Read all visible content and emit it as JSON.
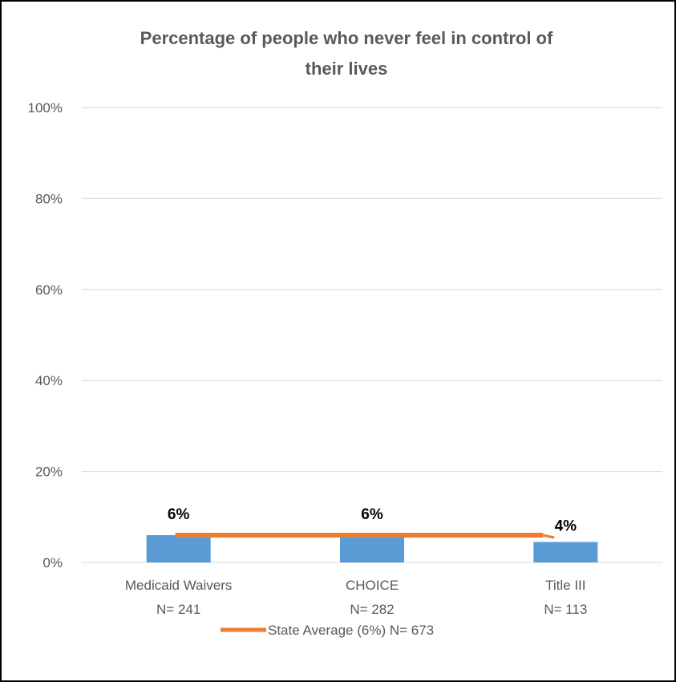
{
  "chart_data": {
    "type": "bar",
    "title_lines": [
      "Percentage of people who never feel in control of",
      "their lives"
    ],
    "categories": [
      "Medicaid Waivers",
      "CHOICE",
      "Title III"
    ],
    "category_sublabels": [
      "N= 241",
      "N= 282",
      "N= 113"
    ],
    "values": [
      6,
      6,
      4.5
    ],
    "data_labels": [
      "6%",
      "6%",
      "4%"
    ],
    "reference_line": {
      "name": "State Average (6%) N= 673",
      "value": 6
    },
    "ylim": [
      0,
      100
    ],
    "yticks": [
      0,
      20,
      40,
      60,
      80,
      100
    ],
    "ytick_labels": [
      "0%",
      "20%",
      "40%",
      "60%",
      "80%",
      "100%"
    ],
    "grid": true,
    "legend_position": "bottom",
    "colors": {
      "bar": "#5b9bd5",
      "reference_line": "#ed7d31",
      "grid": "#d9d9d9",
      "text": "#595959",
      "border": "#000000"
    }
  }
}
